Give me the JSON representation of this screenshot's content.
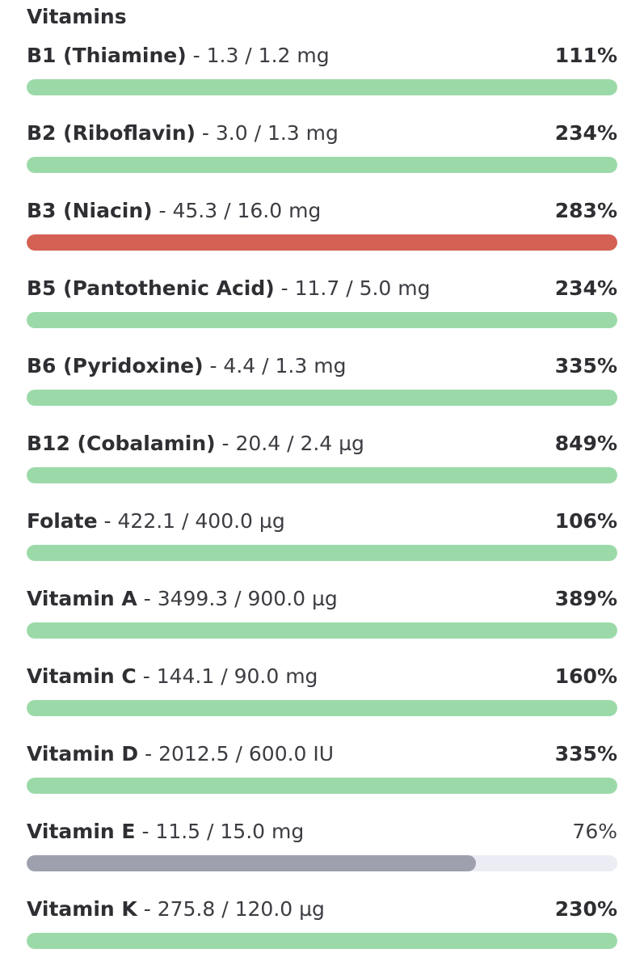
{
  "section": {
    "title": "Vitamins"
  },
  "colors": {
    "ok": "#9bdaa8",
    "high": "#d46153",
    "low": "#9ea0ad",
    "track": "#ececf5"
  },
  "nutrients": [
    {
      "name": "B1 (Thiamine)",
      "amount": " - 1.3 / 1.2 mg",
      "percent_label": "111%",
      "fill_fraction": 1.0,
      "status": "ok"
    },
    {
      "name": "B2 (Riboflavin)",
      "amount": " - 3.0 / 1.3 mg",
      "percent_label": "234%",
      "fill_fraction": 1.0,
      "status": "ok"
    },
    {
      "name": "B3 (Niacin)",
      "amount": " - 45.3 / 16.0 mg",
      "percent_label": "283%",
      "fill_fraction": 1.0,
      "status": "high"
    },
    {
      "name": "B5 (Pantothenic Acid)",
      "amount": " - 11.7 / 5.0 mg",
      "percent_label": "234%",
      "fill_fraction": 1.0,
      "status": "ok"
    },
    {
      "name": "B6 (Pyridoxine)",
      "amount": " - 4.4 / 1.3 mg",
      "percent_label": "335%",
      "fill_fraction": 1.0,
      "status": "ok"
    },
    {
      "name": "B12 (Cobalamin)",
      "amount": " - 20.4 / 2.4 µg",
      "percent_label": "849%",
      "fill_fraction": 1.0,
      "status": "ok"
    },
    {
      "name": "Folate",
      "amount": " - 422.1 / 400.0 µg",
      "percent_label": "106%",
      "fill_fraction": 1.0,
      "status": "ok"
    },
    {
      "name": "Vitamin A",
      "amount": " - 3499.3 / 900.0 µg",
      "percent_label": "389%",
      "fill_fraction": 1.0,
      "status": "ok"
    },
    {
      "name": "Vitamin C",
      "amount": " - 144.1 / 90.0 mg",
      "percent_label": "160%",
      "fill_fraction": 1.0,
      "status": "ok"
    },
    {
      "name": "Vitamin D",
      "amount": " - 2012.5 / 600.0 IU",
      "percent_label": "335%",
      "fill_fraction": 1.0,
      "status": "ok"
    },
    {
      "name": "Vitamin E",
      "amount": " - 11.5 / 15.0 mg",
      "percent_label": "76%",
      "fill_fraction": 0.76,
      "status": "low"
    },
    {
      "name": "Vitamin K",
      "amount": " - 275.8 / 120.0 µg",
      "percent_label": "230%",
      "fill_fraction": 1.0,
      "status": "ok"
    }
  ]
}
